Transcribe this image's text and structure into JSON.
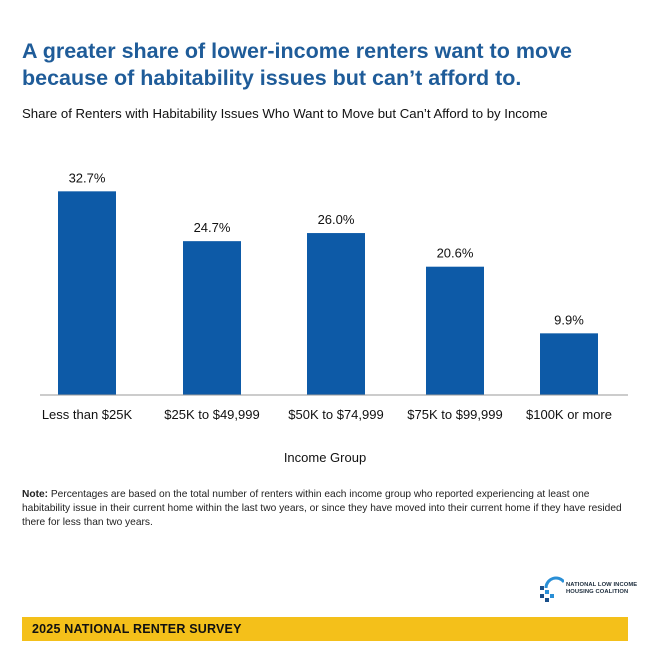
{
  "headline": {
    "line1": "A greater share of lower-income renters want to move",
    "line2": "because of habitability issues but can’t afford to."
  },
  "colors": {
    "bar": "#0d5aa7",
    "headline": "#1f5c99",
    "footer_band": "#f4c01a"
  },
  "chart_data": {
    "type": "bar",
    "title": "Share of Renters with Habitability Issues Who Want to Move but Can’t Afford to by Income",
    "xlabel": "Income Group",
    "ylabel": "",
    "categories": [
      "Less than $25K",
      "$25K to $49,999",
      "$50K to $74,999",
      "$75K to $99,999",
      "$100K or more"
    ],
    "values": [
      32.7,
      24.7,
      26.0,
      20.6,
      9.9
    ],
    "data_labels": [
      "32.7%",
      "24.7%",
      "26.0%",
      "20.6%",
      "9.9%"
    ],
    "ylim": [
      0,
      35
    ],
    "grid": false,
    "legend": "none"
  },
  "note": {
    "label": "Note:",
    "text": " Percentages are based on the total number of renters within each income group who reported experiencing at least one habitability issue in their current home within the last two years, or since they have moved into their current home if they have resided there for less than two years."
  },
  "logo": {
    "icon": "nlihc-logo-icon",
    "line1": "NATIONAL LOW INCOME",
    "line2": "HOUSING COALITION"
  },
  "footer": {
    "label": "2025 NATIONAL RENTER SURVEY"
  }
}
